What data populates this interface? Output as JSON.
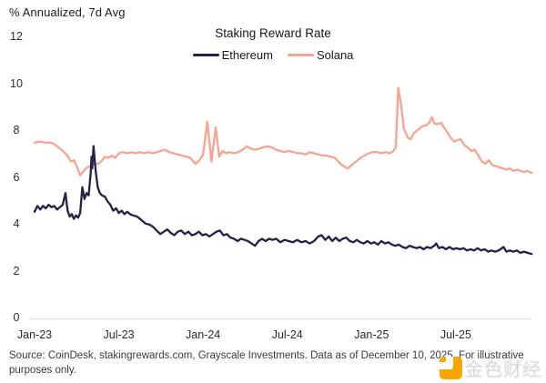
{
  "figure": {
    "unit_label": "% Annualized, 7d Avg",
    "title": "Staking Reward Rate",
    "source_text": "Source: CoinDesk, stakingrewards.com, Grayscale Investments. Data as of December 10, 2025. For illustrative purposes only."
  },
  "watermark": {
    "text": "金色财经",
    "logo_color": "#F7A600"
  },
  "chart_data": {
    "type": "line",
    "title": "Staking Reward Rate",
    "ylabel": "% Annualized, 7d Avg",
    "ylim": [
      0,
      12
    ],
    "y_ticks": [
      0,
      2,
      4,
      6,
      8,
      10,
      12
    ],
    "grid": "baseline-only",
    "legend_position": "top-center",
    "x_unit": "months since Jan-2023",
    "x_ticks": [
      {
        "label": "Jan-23",
        "month": 0
      },
      {
        "label": "Jul-23",
        "month": 6
      },
      {
        "label": "Jan-24",
        "month": 12
      },
      {
        "label": "Jul-24",
        "month": 18
      },
      {
        "label": "Jan-25",
        "month": 24
      },
      {
        "label": "Jul-25",
        "month": 30
      }
    ],
    "series": [
      {
        "name": "Solana",
        "color": "#F5A48F",
        "points": [
          [
            0,
            7.5
          ],
          [
            0.4,
            7.55
          ],
          [
            0.8,
            7.5
          ],
          [
            1.2,
            7.5
          ],
          [
            1.5,
            7.4
          ],
          [
            1.8,
            7.25
          ],
          [
            2.1,
            7.1
          ],
          [
            2.4,
            6.9
          ],
          [
            2.6,
            6.7
          ],
          [
            2.8,
            6.75
          ],
          [
            3.0,
            6.5
          ],
          [
            3.25,
            6.1
          ],
          [
            3.5,
            6.3
          ],
          [
            3.75,
            6.45
          ],
          [
            4.0,
            6.5
          ],
          [
            4.25,
            6.6
          ],
          [
            4.5,
            6.6
          ],
          [
            4.75,
            6.7
          ],
          [
            5.0,
            6.9
          ],
          [
            5.25,
            6.85
          ],
          [
            5.5,
            6.95
          ],
          [
            5.75,
            6.85
          ],
          [
            6.0,
            7.05
          ],
          [
            6.3,
            7.1
          ],
          [
            6.6,
            7.05
          ],
          [
            6.9,
            7.1
          ],
          [
            7.2,
            7.05
          ],
          [
            7.5,
            7.1
          ],
          [
            7.8,
            7.05
          ],
          [
            8.1,
            7.1
          ],
          [
            8.4,
            7.05
          ],
          [
            8.7,
            7.1
          ],
          [
            9.0,
            7.15
          ],
          [
            9.3,
            7.2
          ],
          [
            9.6,
            7.1
          ],
          [
            9.9,
            7.05
          ],
          [
            10.2,
            7.0
          ],
          [
            10.5,
            6.95
          ],
          [
            10.8,
            6.9
          ],
          [
            11.1,
            6.85
          ],
          [
            11.45,
            6.6
          ],
          [
            11.75,
            6.75
          ],
          [
            12.0,
            7.0
          ],
          [
            12.3,
            8.4
          ],
          [
            12.6,
            6.7
          ],
          [
            12.9,
            8.15
          ],
          [
            13.15,
            6.9
          ],
          [
            13.4,
            7.15
          ],
          [
            13.65,
            7.05
          ],
          [
            13.9,
            7.1
          ],
          [
            14.2,
            7.05
          ],
          [
            14.5,
            7.1
          ],
          [
            14.8,
            7.2
          ],
          [
            15.1,
            7.35
          ],
          [
            15.4,
            7.25
          ],
          [
            15.7,
            7.2
          ],
          [
            16.0,
            7.25
          ],
          [
            16.3,
            7.3
          ],
          [
            16.6,
            7.35
          ],
          [
            16.9,
            7.3
          ],
          [
            17.2,
            7.2
          ],
          [
            17.5,
            7.15
          ],
          [
            17.8,
            7.1
          ],
          [
            18.1,
            7.15
          ],
          [
            18.4,
            7.1
          ],
          [
            18.7,
            7.05
          ],
          [
            19.0,
            7.05
          ],
          [
            19.3,
            7.0
          ],
          [
            19.6,
            7.1
          ],
          [
            19.9,
            7.05
          ],
          [
            20.2,
            7.0
          ],
          [
            20.5,
            6.95
          ],
          [
            20.8,
            6.95
          ],
          [
            21.1,
            6.9
          ],
          [
            21.4,
            6.85
          ],
          [
            21.7,
            6.65
          ],
          [
            22.0,
            6.5
          ],
          [
            22.3,
            6.4
          ],
          [
            22.6,
            6.55
          ],
          [
            22.9,
            6.7
          ],
          [
            23.2,
            6.85
          ],
          [
            23.5,
            6.95
          ],
          [
            23.8,
            7.05
          ],
          [
            24.1,
            7.1
          ],
          [
            24.4,
            7.1
          ],
          [
            24.7,
            7.05
          ],
          [
            25.0,
            7.1
          ],
          [
            25.3,
            7.05
          ],
          [
            25.55,
            7.15
          ],
          [
            25.72,
            7.3
          ],
          [
            25.9,
            9.85
          ],
          [
            26.1,
            9.15
          ],
          [
            26.3,
            8.1
          ],
          [
            26.6,
            7.7
          ],
          [
            26.8,
            7.65
          ],
          [
            27.0,
            7.9
          ],
          [
            27.3,
            8.05
          ],
          [
            27.6,
            8.2
          ],
          [
            27.9,
            8.25
          ],
          [
            28.1,
            8.35
          ],
          [
            28.3,
            8.6
          ],
          [
            28.5,
            8.3
          ],
          [
            28.75,
            8.3
          ],
          [
            28.95,
            8.35
          ],
          [
            29.15,
            8.15
          ],
          [
            29.4,
            7.95
          ],
          [
            29.65,
            7.7
          ],
          [
            29.9,
            7.55
          ],
          [
            30.1,
            7.6
          ],
          [
            30.35,
            7.65
          ],
          [
            30.6,
            7.4
          ],
          [
            30.85,
            7.3
          ],
          [
            31.1,
            7.15
          ],
          [
            31.35,
            7.2
          ],
          [
            31.6,
            6.95
          ],
          [
            31.85,
            6.7
          ],
          [
            32.1,
            6.6
          ],
          [
            32.35,
            6.75
          ],
          [
            32.6,
            6.55
          ],
          [
            32.85,
            6.5
          ],
          [
            33.1,
            6.45
          ],
          [
            33.35,
            6.4
          ],
          [
            33.6,
            6.35
          ],
          [
            33.85,
            6.4
          ],
          [
            34.1,
            6.3
          ],
          [
            34.35,
            6.35
          ],
          [
            34.6,
            6.3
          ],
          [
            34.85,
            6.25
          ],
          [
            35.1,
            6.3
          ],
          [
            35.4,
            6.2
          ]
        ]
      },
      {
        "name": "Ethereum",
        "color": "#242048",
        "points": [
          [
            0,
            4.55
          ],
          [
            0.2,
            4.8
          ],
          [
            0.4,
            4.65
          ],
          [
            0.6,
            4.8
          ],
          [
            0.8,
            4.7
          ],
          [
            1.0,
            4.85
          ],
          [
            1.2,
            4.75
          ],
          [
            1.4,
            4.8
          ],
          [
            1.6,
            4.65
          ],
          [
            1.8,
            4.75
          ],
          [
            2.0,
            4.85
          ],
          [
            2.2,
            5.35
          ],
          [
            2.35,
            4.6
          ],
          [
            2.5,
            4.35
          ],
          [
            2.65,
            4.45
          ],
          [
            2.8,
            4.25
          ],
          [
            2.95,
            4.4
          ],
          [
            3.1,
            4.3
          ],
          [
            3.25,
            4.5
          ],
          [
            3.4,
            5.6
          ],
          [
            3.55,
            5.1
          ],
          [
            3.7,
            5.35
          ],
          [
            3.85,
            5.25
          ],
          [
            4.0,
            6.2
          ],
          [
            4.05,
            6.9
          ],
          [
            4.1,
            6.4
          ],
          [
            4.2,
            7.35
          ],
          [
            4.35,
            6.3
          ],
          [
            4.5,
            5.6
          ],
          [
            4.65,
            5.35
          ],
          [
            4.8,
            5.25
          ],
          [
            5.0,
            5.2
          ],
          [
            5.2,
            5.0
          ],
          [
            5.4,
            4.85
          ],
          [
            5.6,
            4.6
          ],
          [
            5.8,
            4.7
          ],
          [
            6.0,
            4.5
          ],
          [
            6.2,
            4.6
          ],
          [
            6.4,
            4.45
          ],
          [
            6.6,
            4.55
          ],
          [
            6.8,
            4.45
          ],
          [
            7.0,
            4.4
          ],
          [
            7.3,
            4.35
          ],
          [
            7.6,
            4.2
          ],
          [
            7.9,
            4.05
          ],
          [
            8.2,
            4.0
          ],
          [
            8.45,
            3.9
          ],
          [
            8.7,
            3.75
          ],
          [
            8.95,
            3.6
          ],
          [
            9.2,
            3.7
          ],
          [
            9.45,
            3.8
          ],
          [
            9.7,
            3.65
          ],
          [
            9.95,
            3.55
          ],
          [
            10.2,
            3.7
          ],
          [
            10.45,
            3.75
          ],
          [
            10.7,
            3.6
          ],
          [
            10.95,
            3.7
          ],
          [
            11.2,
            3.55
          ],
          [
            11.45,
            3.6
          ],
          [
            11.7,
            3.7
          ],
          [
            11.95,
            3.55
          ],
          [
            12.2,
            3.6
          ],
          [
            12.45,
            3.5
          ],
          [
            12.7,
            3.6
          ],
          [
            12.95,
            3.7
          ],
          [
            13.2,
            3.75
          ],
          [
            13.45,
            3.55
          ],
          [
            13.7,
            3.6
          ],
          [
            13.95,
            3.45
          ],
          [
            14.2,
            3.4
          ],
          [
            14.45,
            3.3
          ],
          [
            14.7,
            3.4
          ],
          [
            14.95,
            3.35
          ],
          [
            15.2,
            3.3
          ],
          [
            15.45,
            3.2
          ],
          [
            15.7,
            3.1
          ],
          [
            15.95,
            3.3
          ],
          [
            16.2,
            3.4
          ],
          [
            16.45,
            3.3
          ],
          [
            16.7,
            3.4
          ],
          [
            16.95,
            3.35
          ],
          [
            17.2,
            3.4
          ],
          [
            17.5,
            3.25
          ],
          [
            17.8,
            3.35
          ],
          [
            18.1,
            3.3
          ],
          [
            18.4,
            3.25
          ],
          [
            18.7,
            3.35
          ],
          [
            19.0,
            3.25
          ],
          [
            19.3,
            3.3
          ],
          [
            19.6,
            3.2
          ],
          [
            19.9,
            3.3
          ],
          [
            20.2,
            3.5
          ],
          [
            20.45,
            3.55
          ],
          [
            20.7,
            3.35
          ],
          [
            20.95,
            3.5
          ],
          [
            21.2,
            3.3
          ],
          [
            21.45,
            3.45
          ],
          [
            21.7,
            3.3
          ],
          [
            21.95,
            3.4
          ],
          [
            22.2,
            3.45
          ],
          [
            22.45,
            3.3
          ],
          [
            22.7,
            3.25
          ],
          [
            22.95,
            3.35
          ],
          [
            23.2,
            3.25
          ],
          [
            23.45,
            3.2
          ],
          [
            23.7,
            3.3
          ],
          [
            23.95,
            3.2
          ],
          [
            24.2,
            3.25
          ],
          [
            24.45,
            3.15
          ],
          [
            24.7,
            3.3
          ],
          [
            24.95,
            3.2
          ],
          [
            25.2,
            3.25
          ],
          [
            25.45,
            3.15
          ],
          [
            25.7,
            3.1
          ],
          [
            25.95,
            3.15
          ],
          [
            26.2,
            3.05
          ],
          [
            26.45,
            3.0
          ],
          [
            26.7,
            3.1
          ],
          [
            26.95,
            3.05
          ],
          [
            27.2,
            3.0
          ],
          [
            27.45,
            3.05
          ],
          [
            27.7,
            2.95
          ],
          [
            27.95,
            3.05
          ],
          [
            28.2,
            3.0
          ],
          [
            28.45,
            3.1
          ],
          [
            28.6,
            3.2
          ],
          [
            28.8,
            3.0
          ],
          [
            29.05,
            3.05
          ],
          [
            29.3,
            2.95
          ],
          [
            29.55,
            3.05
          ],
          [
            29.8,
            2.95
          ],
          [
            30.05,
            3.0
          ],
          [
            30.3,
            2.95
          ],
          [
            30.55,
            3.0
          ],
          [
            30.8,
            2.9
          ],
          [
            31.05,
            2.95
          ],
          [
            31.3,
            2.9
          ],
          [
            31.55,
            3.0
          ],
          [
            31.8,
            2.9
          ],
          [
            32.05,
            2.95
          ],
          [
            32.3,
            2.85
          ],
          [
            32.55,
            2.9
          ],
          [
            32.8,
            2.85
          ],
          [
            33.05,
            2.9
          ],
          [
            33.4,
            3.05
          ],
          [
            33.6,
            2.85
          ],
          [
            33.85,
            2.9
          ],
          [
            34.1,
            2.85
          ],
          [
            34.35,
            2.9
          ],
          [
            34.6,
            2.8
          ],
          [
            34.85,
            2.85
          ],
          [
            35.1,
            2.8
          ],
          [
            35.4,
            2.75
          ]
        ]
      }
    ]
  }
}
